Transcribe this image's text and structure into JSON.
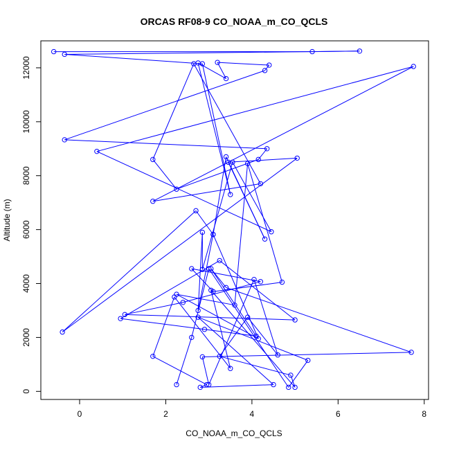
{
  "chart_data": {
    "type": "line",
    "title": "ORCAS RF08-9 CO_NOAA_m_CO_QCLS",
    "xlabel": "CO_NOAA_m_CO_QCLS",
    "ylabel": "Altitude (m)",
    "xlim": [
      -0.9,
      8.1
    ],
    "ylim": [
      -300,
      13000
    ],
    "xticks": [
      0,
      2,
      4,
      6,
      8
    ],
    "yticks": [
      0,
      2000,
      4000,
      6000,
      8000,
      10000,
      12000
    ],
    "grid": false,
    "legend": "none",
    "color": "#0000ff",
    "markers": "open-circle",
    "series": [
      {
        "x": [
          -0.6,
          5.4,
          6.5,
          -0.35,
          2.85,
          3.5,
          2.75,
          3.4,
          3.2,
          4.4,
          4.3,
          -0.35,
          4.35,
          4.15,
          2.25,
          1.7,
          2.65,
          4.2,
          1.7,
          7.75,
          0.4,
          4.45,
          3.55,
          2.85,
          2.85,
          2.75,
          3.1,
          3.4,
          4.3,
          3.45,
          5.05,
          -0.4,
          2.7,
          3.1,
          4.15,
          2.25,
          3.6,
          3.9,
          4.7,
          3.1,
          2.6,
          4.2,
          2.4,
          1.05,
          5.0,
          3.25,
          0.95,
          2.9,
          4.1,
          3.05,
          3.4,
          7.7,
          2.85,
          3.0,
          4.05,
          4.6,
          3.9,
          3.25,
          4.9,
          5.0,
          3.05,
          3.5,
          2.2,
          1.7,
          2.95,
          2.8,
          4.5,
          2.75,
          5.3,
          4.85,
          3.0,
          2.6,
          2.25
        ],
        "y": [
          12600,
          12600,
          12620,
          12500,
          12150,
          7300,
          12180,
          11600,
          12200,
          12100,
          11900,
          9330,
          9000,
          8600,
          7500,
          8600,
          12150,
          7700,
          7050,
          12050,
          8900,
          5920,
          8500,
          4520,
          5900,
          3000,
          5820,
          8700,
          5650,
          8500,
          8650,
          2200,
          6700,
          5820,
          1950,
          3600,
          3200,
          8450,
          4050,
          3700,
          4550,
          4070,
          3300,
          2850,
          2650,
          4850,
          2700,
          2300,
          2050,
          4550,
          3850,
          1450,
          1280,
          250,
          4150,
          1350,
          2750,
          1300,
          600,
          150,
          3750,
          850,
          3500,
          1300,
          250,
          150,
          250,
          2750,
          1150,
          150,
          4550,
          2000,
          250
        ]
      }
    ]
  }
}
